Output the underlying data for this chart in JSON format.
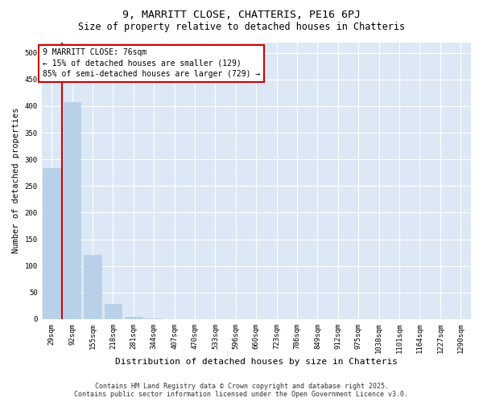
{
  "title": "9, MARRITT CLOSE, CHATTERIS, PE16 6PJ",
  "subtitle": "Size of property relative to detached houses in Chatteris",
  "xlabel": "Distribution of detached houses by size in Chatteris",
  "ylabel": "Number of detached properties",
  "categories": [
    "29sqm",
    "92sqm",
    "155sqm",
    "218sqm",
    "281sqm",
    "344sqm",
    "407sqm",
    "470sqm",
    "533sqm",
    "596sqm",
    "660sqm",
    "723sqm",
    "786sqm",
    "849sqm",
    "912sqm",
    "975sqm",
    "1038sqm",
    "1101sqm",
    "1164sqm",
    "1227sqm",
    "1290sqm"
  ],
  "values": [
    283,
    407,
    120,
    28,
    5,
    1,
    0,
    0,
    0,
    0,
    0,
    0,
    0,
    0,
    0,
    0,
    0,
    0,
    0,
    0,
    0
  ],
  "bar_color": "#b8d0e8",
  "annotation_box_color": "#cc0000",
  "annotation_text": "9 MARRITT CLOSE: 76sqm\n← 15% of detached houses are smaller (129)\n85% of semi-detached houses are larger (729) →",
  "vline_x": 0.5,
  "vline_color": "#cc0000",
  "ylim": [
    0,
    520
  ],
  "yticks": [
    0,
    50,
    100,
    150,
    200,
    250,
    300,
    350,
    400,
    450,
    500
  ],
  "background_color": "#dce8f5",
  "grid_color": "#ffffff",
  "footer_line1": "Contains HM Land Registry data © Crown copyright and database right 2025.",
  "footer_line2": "Contains public sector information licensed under the Open Government Licence v3.0.",
  "title_fontsize": 9.5,
  "subtitle_fontsize": 8.5,
  "annotation_fontsize": 7,
  "tick_fontsize": 6.5,
  "label_fontsize": 8,
  "footer_fontsize": 6,
  "ylabel_fontsize": 7.5
}
